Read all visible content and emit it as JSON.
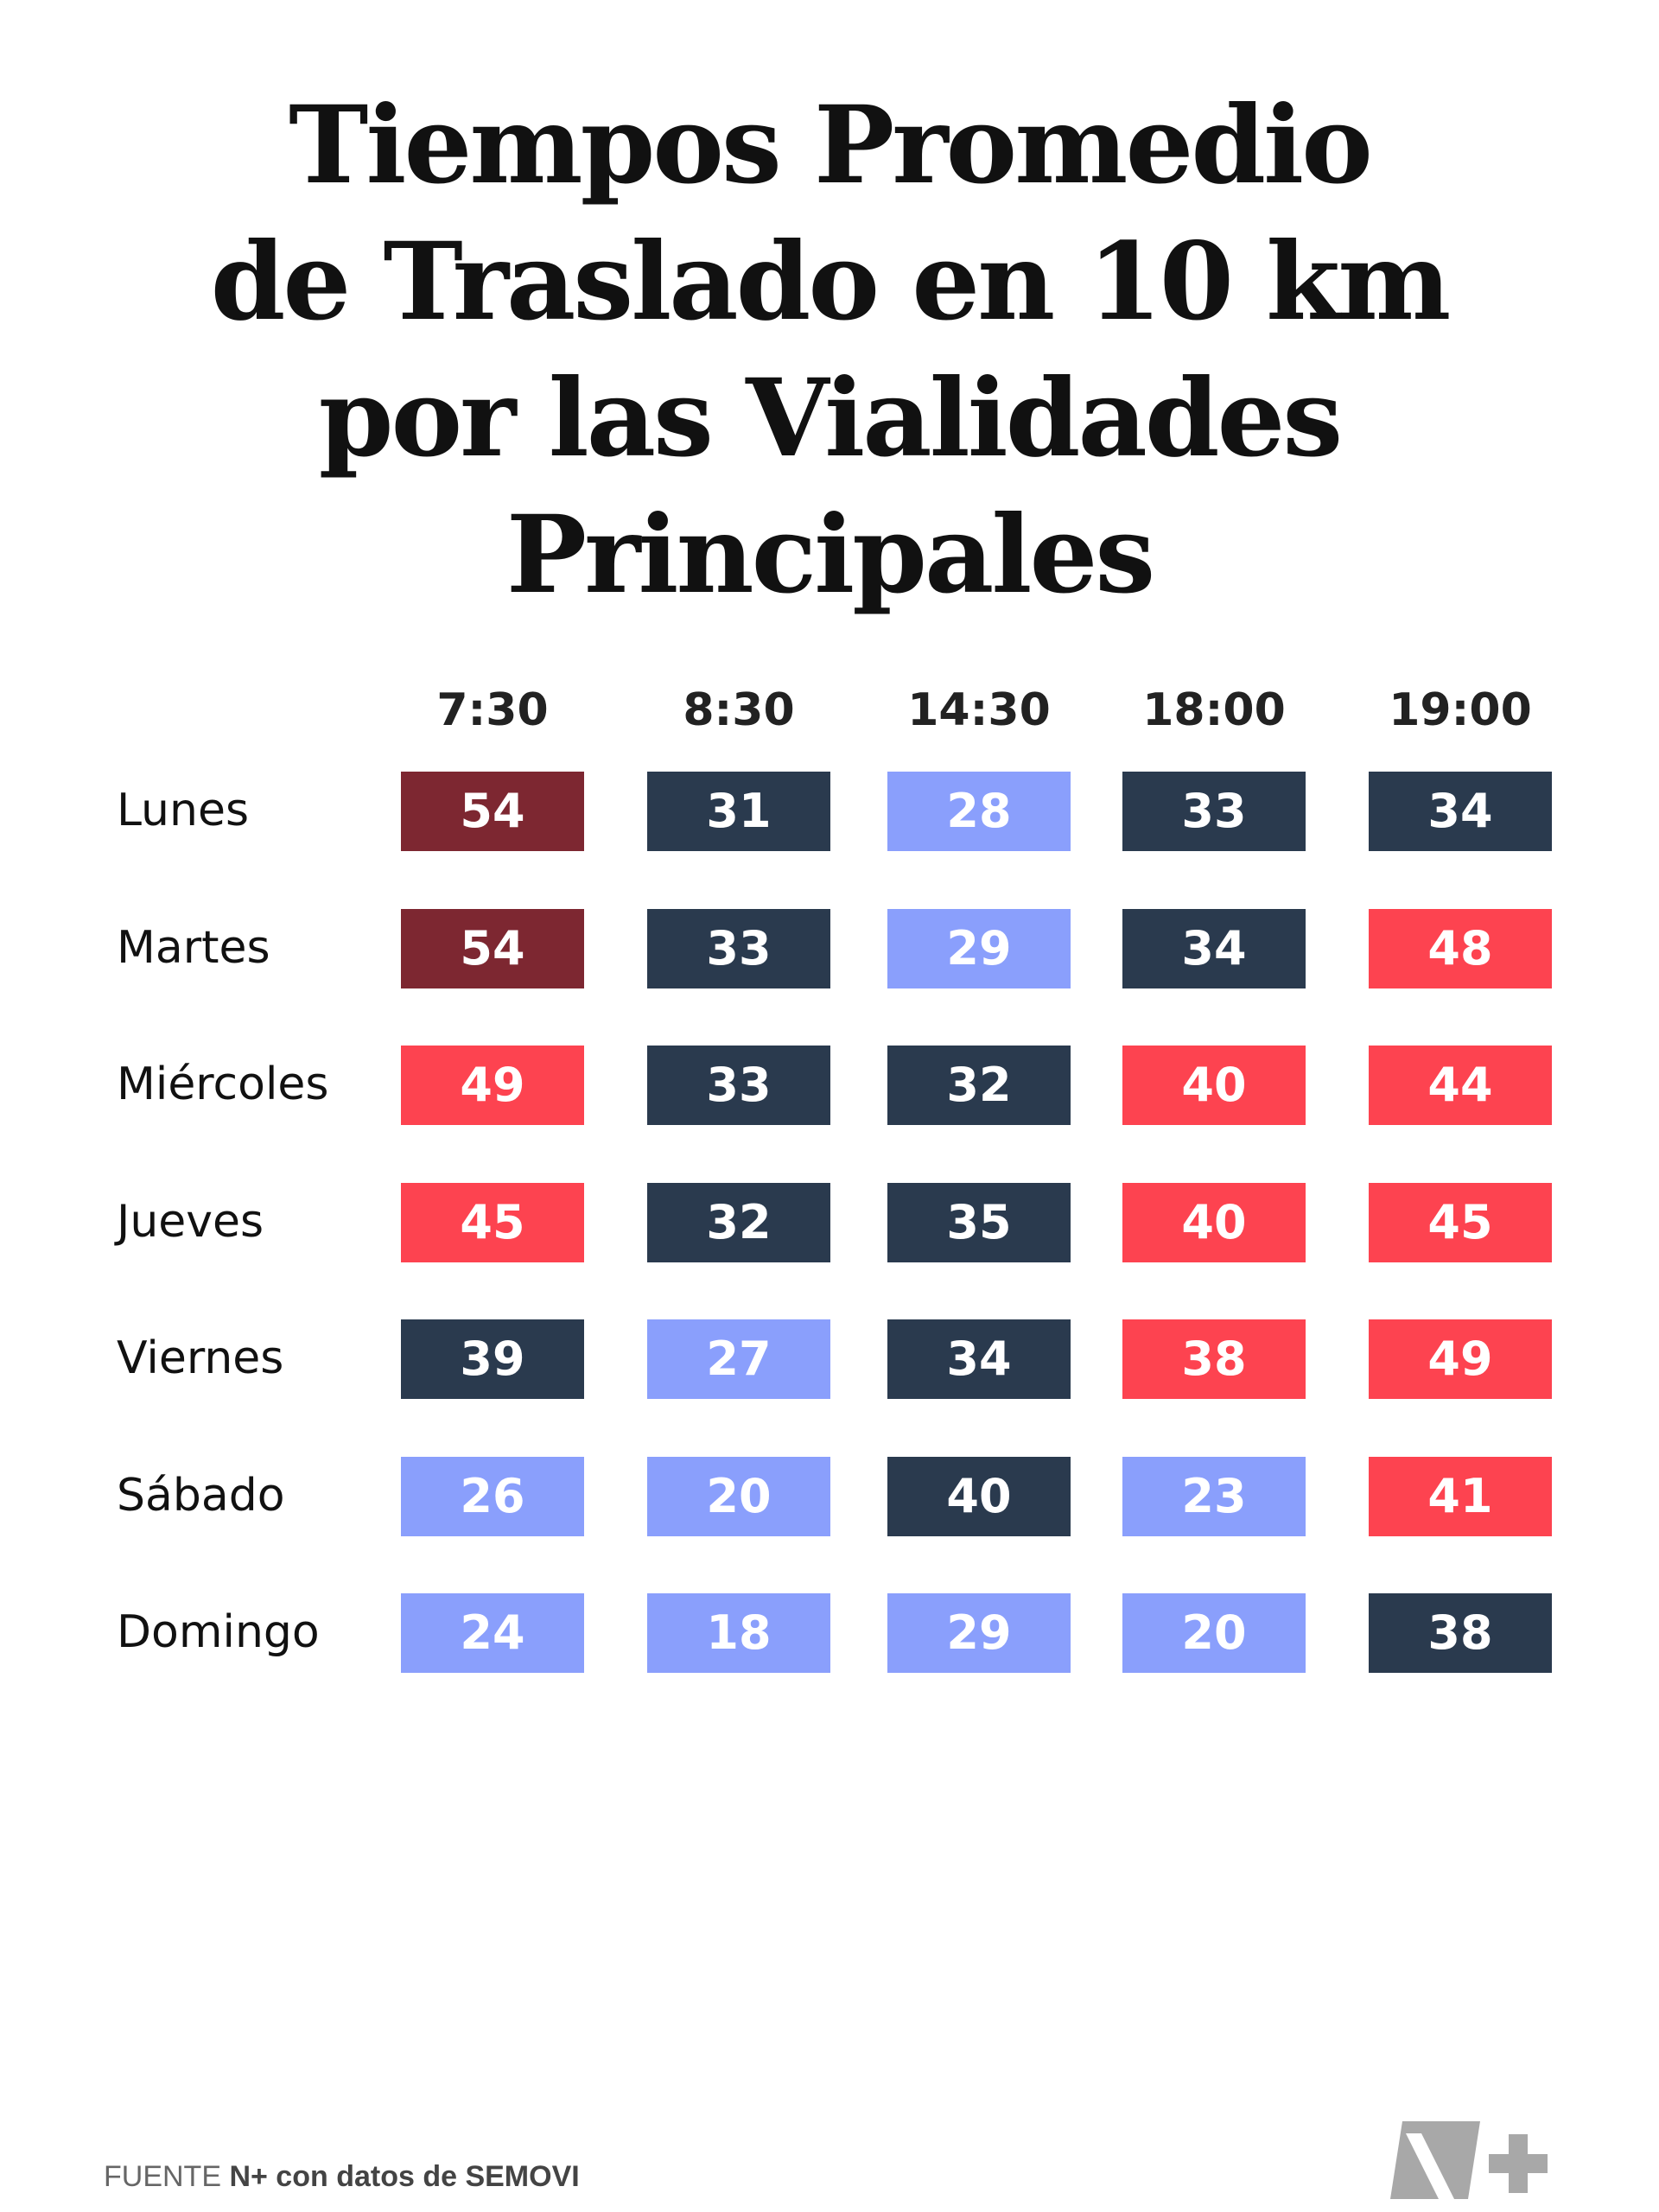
{
  "title_lines": [
    "Tiempos Promedio",
    "de Traslado en 10 km",
    "por las Vialidades Principales"
  ],
  "chart_data": {
    "type": "heatmap",
    "title": "Tiempos Promedio de Traslado en 10 km por las Vialidades Principales",
    "columns": [
      "7:30",
      "8:30",
      "14:30",
      "18:00",
      "19:00"
    ],
    "rows": [
      "Lunes",
      "Martes",
      "Miércoles",
      "Jueves",
      "Viernes",
      "Sábado",
      "Domingo"
    ],
    "values": [
      [
        54,
        31,
        28,
        33,
        34
      ],
      [
        54,
        33,
        29,
        34,
        48
      ],
      [
        49,
        33,
        32,
        40,
        44
      ],
      [
        45,
        32,
        35,
        40,
        45
      ],
      [
        39,
        27,
        34,
        38,
        49
      ],
      [
        26,
        20,
        40,
        23,
        41
      ],
      [
        24,
        18,
        29,
        20,
        38
      ]
    ],
    "colors": {
      "light_blue": "#8a9ffc",
      "dark_navy": "#2a3a4e",
      "red": "#fd4350",
      "dark_red": "#7d2731"
    },
    "cell_colors": [
      [
        "dark_red",
        "dark_navy",
        "light_blue",
        "dark_navy",
        "dark_navy"
      ],
      [
        "dark_red",
        "dark_navy",
        "light_blue",
        "dark_navy",
        "red"
      ],
      [
        "red",
        "dark_navy",
        "dark_navy",
        "red",
        "red"
      ],
      [
        "red",
        "dark_navy",
        "dark_navy",
        "red",
        "red"
      ],
      [
        "dark_navy",
        "light_blue",
        "dark_navy",
        "red",
        "red"
      ],
      [
        "light_blue",
        "light_blue",
        "dark_navy",
        "light_blue",
        "red"
      ],
      [
        "light_blue",
        "light_blue",
        "light_blue",
        "light_blue",
        "dark_navy"
      ]
    ]
  },
  "footer": {
    "prefix": "FUENTE ",
    "bold": "N+ con datos de SEMOVI"
  },
  "logo": {
    "icon": "nplus-logo-icon",
    "color": "#a8a8a8"
  }
}
